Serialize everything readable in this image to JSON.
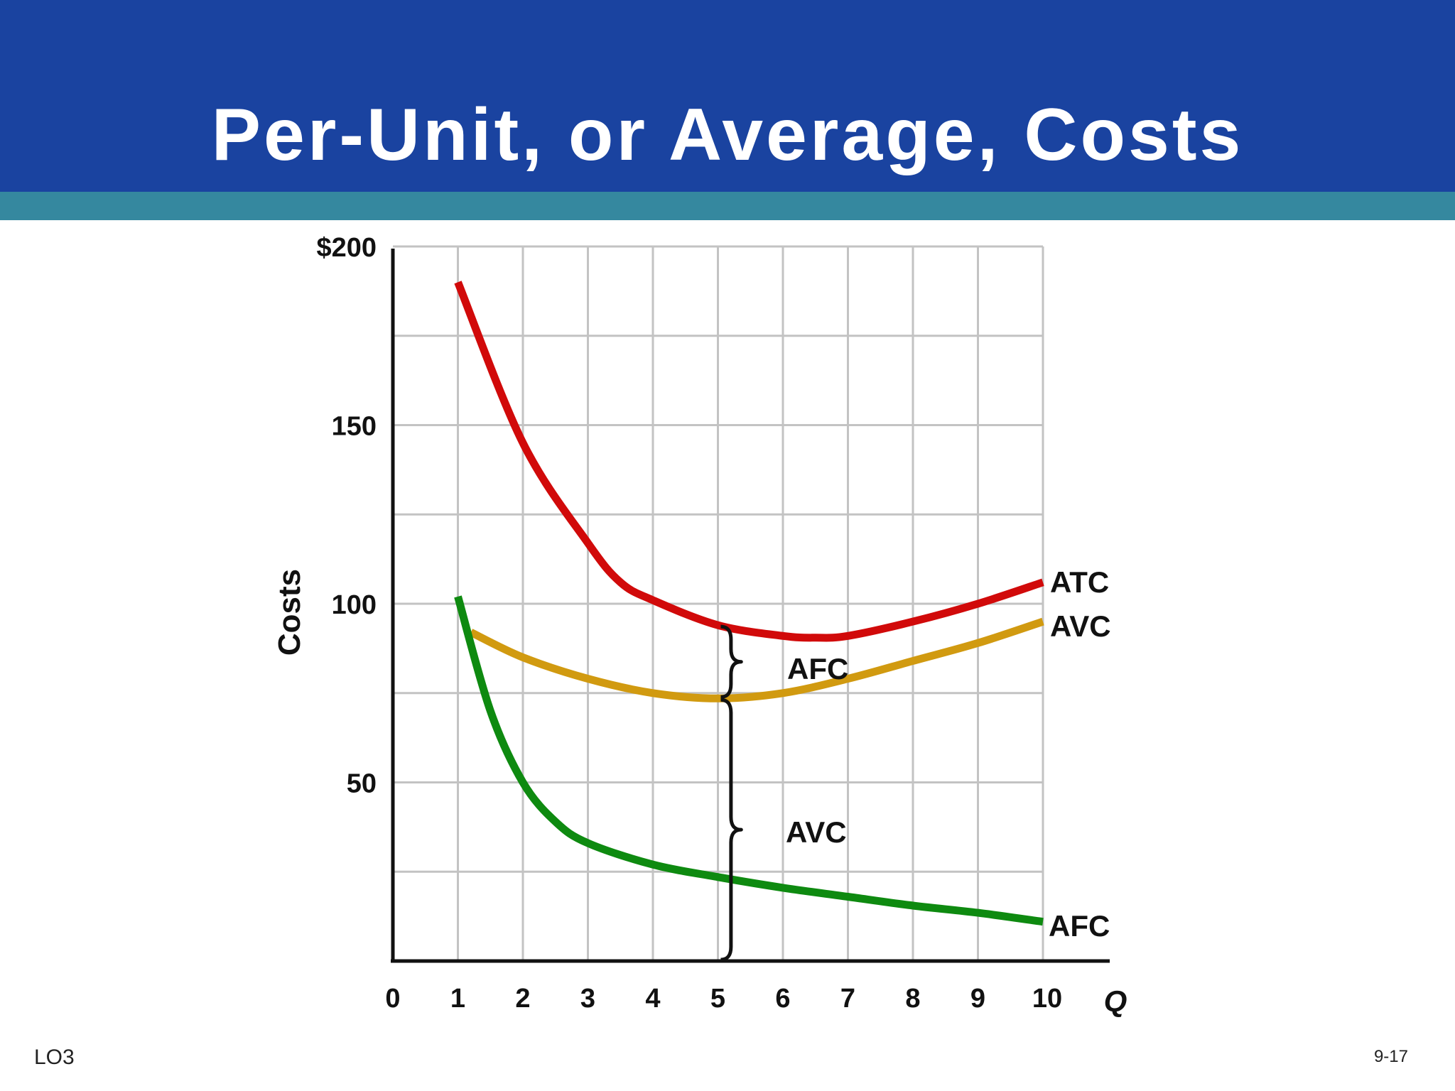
{
  "slide": {
    "title": "Per-Unit, or Average, Costs",
    "footer_left": "LO3",
    "footer_right": "9-17"
  },
  "colors": {
    "header_blue": "#1a43a0",
    "header_stripe": "#35889f",
    "atc": "#d10a0a",
    "avc": "#d19a10",
    "afc": "#0e8a10",
    "grid": "#c3c3c3"
  },
  "chart_data": {
    "type": "line",
    "xlabel": "Q",
    "ylabel": "Costs",
    "xlim": [
      0,
      10
    ],
    "ylim": [
      0,
      200
    ],
    "x_ticks": [
      "0",
      "1",
      "2",
      "3",
      "4",
      "5",
      "6",
      "7",
      "8",
      "9",
      "10"
    ],
    "y_ticks": [
      {
        "value": 200,
        "label": "$200"
      },
      {
        "value": 150,
        "label": "150"
      },
      {
        "value": 100,
        "label": "100"
      },
      {
        "value": 50,
        "label": "50"
      }
    ],
    "grid": true,
    "series": [
      {
        "name": "ATC",
        "color": "#d10a0a",
        "x": [
          1,
          2,
          3,
          3.5,
          4,
          5,
          6,
          6.5,
          7,
          8,
          9,
          10
        ],
        "y": [
          190,
          145,
          117,
          106,
          101,
          94,
          91,
          90.5,
          91,
          95,
          100,
          106
        ]
      },
      {
        "name": "AVC",
        "color": "#d19a10",
        "x": [
          1.2,
          2,
          3,
          4,
          5,
          6,
          7,
          8,
          9,
          10
        ],
        "y": [
          92,
          85,
          79,
          75,
          73.5,
          75,
          79,
          84,
          89,
          95
        ]
      },
      {
        "name": "AFC",
        "color": "#0e8a10",
        "x": [
          1,
          1.5,
          2,
          2.5,
          3,
          4,
          5,
          6,
          7,
          8,
          9,
          10
        ],
        "y": [
          102,
          70,
          50,
          39,
          33,
          27,
          23.5,
          20.5,
          18,
          15.5,
          13.5,
          11
        ]
      }
    ],
    "annotations": [
      {
        "label": "AFC",
        "at_x": 5,
        "from_y": 73.5,
        "to_y": 94,
        "type": "brace"
      },
      {
        "label": "AVC",
        "at_x": 5,
        "from_y": 0,
        "to_y": 73.5,
        "type": "brace"
      }
    ]
  }
}
